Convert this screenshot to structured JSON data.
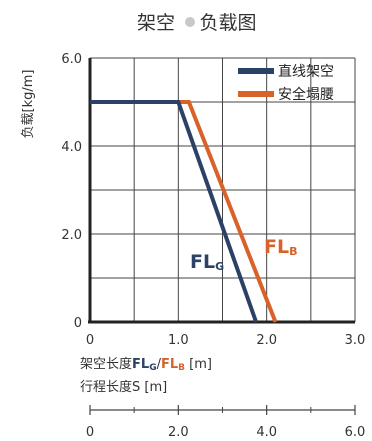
{
  "title": {
    "left": "架空",
    "right": "负载图"
  },
  "chart_data": {
    "type": "line",
    "ylabel": "负载[kg/m]",
    "xlabel_main": "架空长度",
    "xlabel_fl_g": "FL",
    "xlabel_fl_g_sub": "G",
    "xlabel_sep": "/",
    "xlabel_fl_b": "FL",
    "xlabel_fl_b_sub": "B",
    "xlabel_unit": " [m]",
    "xlim": [
      0,
      3.0
    ],
    "ylim": [
      0,
      6.0
    ],
    "x_ticks": [
      "0",
      "1.0",
      "2.0",
      "3.0"
    ],
    "y_ticks": [
      "0",
      "2.0",
      "4.0",
      "6.0"
    ],
    "grid": true,
    "legend_position": "top-right",
    "series": [
      {
        "name": "直线架空",
        "color": "#2b4266",
        "label": "FL",
        "label_sub": "G",
        "points": [
          [
            0,
            5.0
          ],
          [
            1.0,
            5.0
          ],
          [
            1.88,
            0
          ]
        ]
      },
      {
        "name": "安全塌腰",
        "color": "#d9622b",
        "label": "FL",
        "label_sub": "B",
        "points": [
          [
            0,
            5.0
          ],
          [
            1.12,
            5.0
          ],
          [
            2.1,
            0
          ]
        ]
      }
    ],
    "secondary_axis": {
      "label": "行程长度S [m]",
      "ticks": [
        "0",
        "2.0",
        "4.0",
        "6.0"
      ],
      "range": [
        0,
        6.0
      ]
    }
  }
}
